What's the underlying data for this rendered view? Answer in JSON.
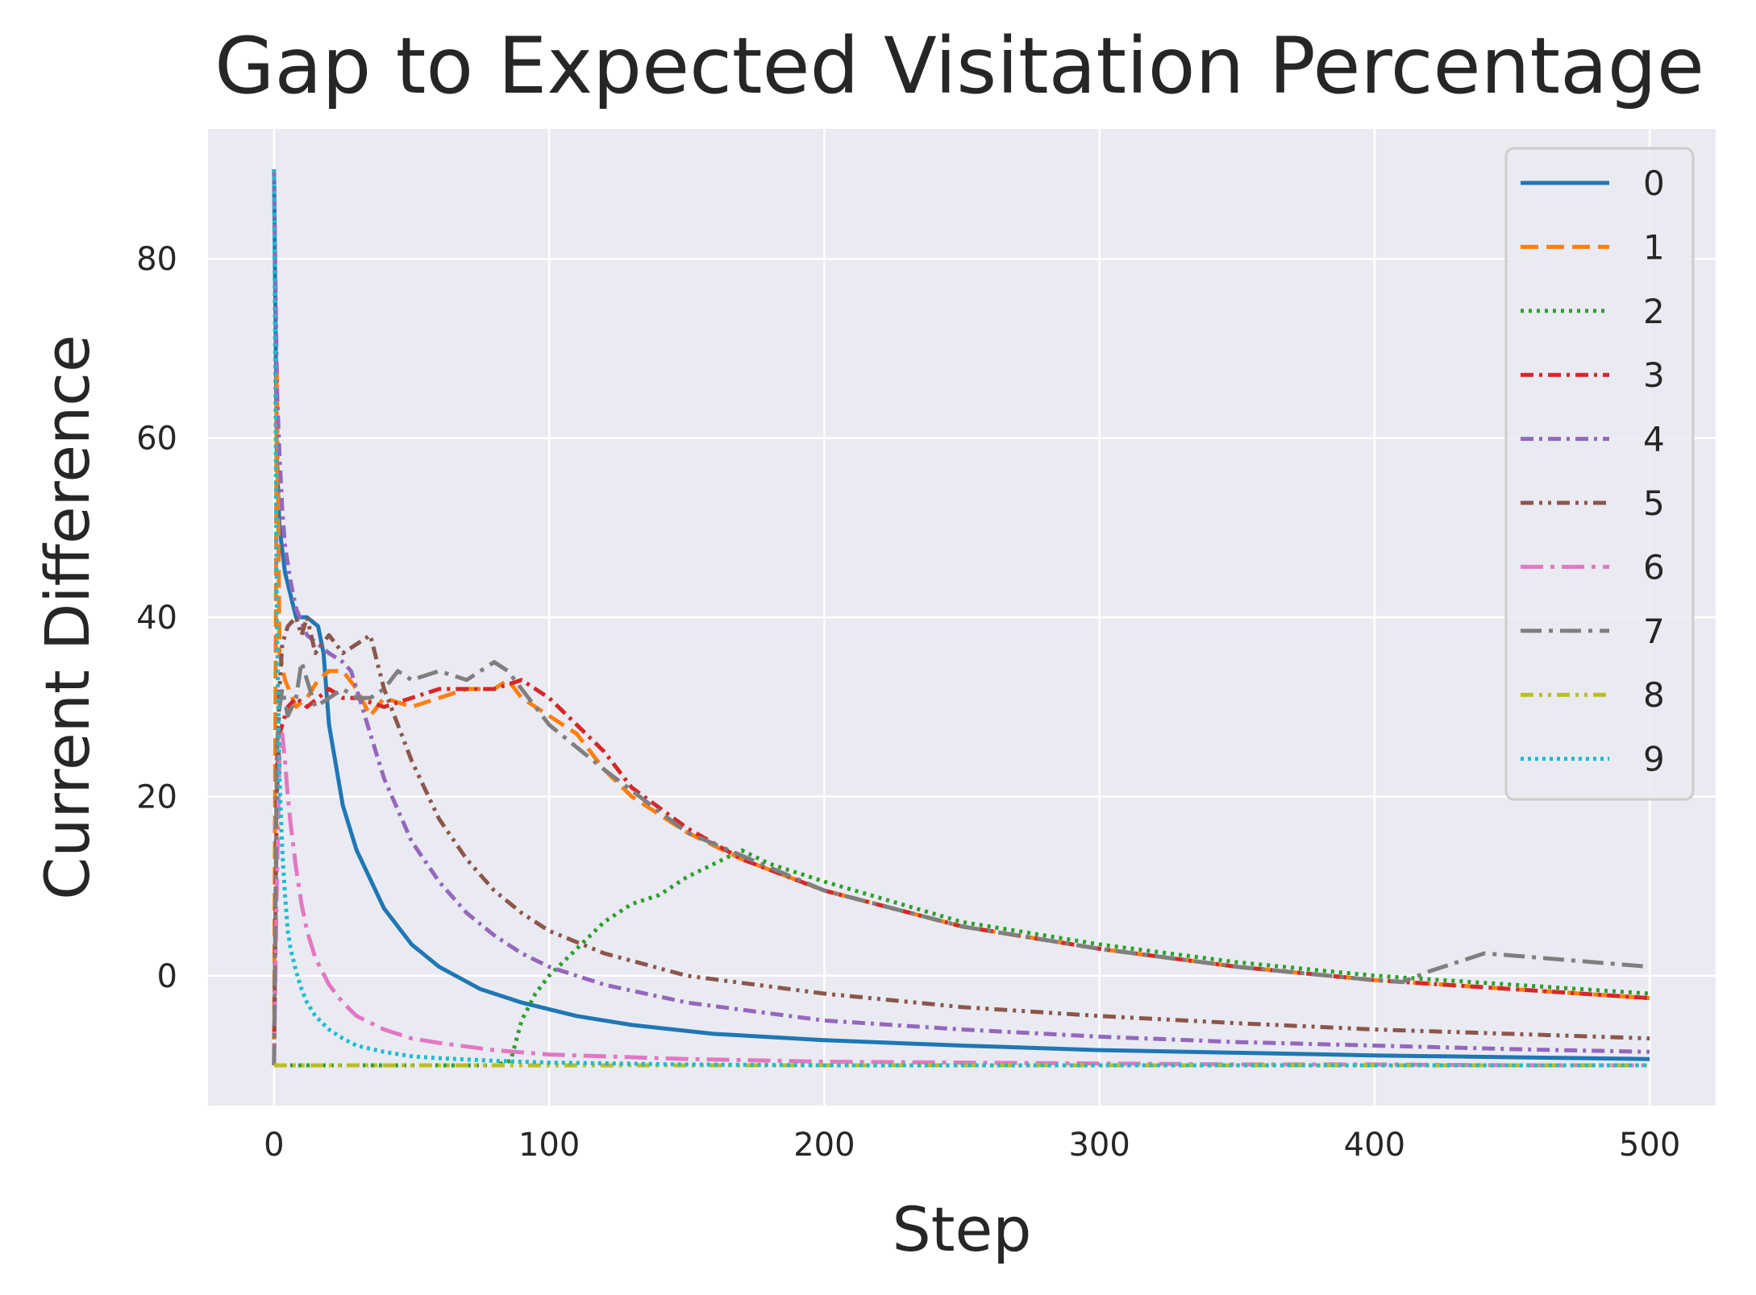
{
  "chart_data": {
    "type": "line",
    "title": "Gap to Expected Visitation Percentage",
    "xlabel": "Step",
    "ylabel": "Current Difference",
    "xlim": [
      -24,
      524
    ],
    "ylim": [
      -14.5,
      94.5
    ],
    "xticks": [
      0,
      100,
      200,
      300,
      400,
      500
    ],
    "yticks": [
      0,
      20,
      40,
      60,
      80
    ],
    "grid": true,
    "legend_position": "top-right",
    "colors": {
      "plot_background": "#eaeaf2",
      "grid": "#ffffff",
      "text": "#262626"
    },
    "series": [
      {
        "name": "0",
        "color": "#1f77b4",
        "dash": "solid",
        "x": [
          0,
          1,
          2,
          4,
          8,
          12,
          16,
          18,
          20,
          25,
          30,
          40,
          50,
          60,
          75,
          90,
          110,
          130,
          160,
          200,
          250,
          300,
          350,
          400,
          450,
          500
        ],
        "y": [
          90,
          58,
          50,
          45,
          40,
          40,
          39,
          36,
          28,
          19,
          14,
          7.5,
          3.5,
          1,
          -1.5,
          -3,
          -4.5,
          -5.5,
          -6.5,
          -7.2,
          -7.8,
          -8.3,
          -8.6,
          -8.9,
          -9.1,
          -9.3
        ]
      },
      {
        "name": "1",
        "color": "#ff7f0e",
        "dash": "dashed",
        "x": [
          0,
          1,
          2,
          4,
          8,
          12,
          16,
          20,
          25,
          30,
          35,
          40,
          50,
          60,
          70,
          80,
          85,
          90,
          100,
          110,
          120,
          130,
          150,
          170,
          200,
          250,
          300,
          350,
          400,
          450,
          500
        ],
        "y": [
          -10,
          68,
          36,
          33,
          30,
          31,
          33,
          34,
          34,
          32,
          29,
          31,
          30,
          31,
          32,
          32,
          33,
          31,
          29,
          27,
          23,
          20,
          16,
          13,
          9.5,
          5.5,
          3,
          1,
          -0.5,
          -1.5,
          -2.5
        ]
      },
      {
        "name": "2",
        "color": "#2ca02c",
        "dash": "dotted",
        "x": [
          0,
          5,
          10,
          20,
          30,
          40,
          50,
          60,
          70,
          80,
          86,
          90,
          95,
          100,
          110,
          120,
          130,
          140,
          150,
          160,
          170,
          180,
          200,
          250,
          300,
          350,
          400,
          450,
          500
        ],
        "y": [
          -10,
          -10,
          -10,
          -10,
          -10,
          -10,
          -10,
          -10,
          -10,
          -10,
          -9.5,
          -5,
          -2,
          0,
          3,
          6,
          8,
          9,
          11,
          12.5,
          14,
          12.5,
          10.5,
          6,
          3.5,
          1.5,
          0,
          -1,
          -2
        ]
      },
      {
        "name": "3",
        "color": "#d62728",
        "dash": "dashdot",
        "x": [
          0,
          1,
          2,
          3,
          5,
          8,
          12,
          16,
          20,
          25,
          30,
          40,
          50,
          60,
          70,
          80,
          90,
          100,
          110,
          120,
          130,
          150,
          170,
          200,
          250,
          300,
          350,
          400,
          450,
          500
        ],
        "y": [
          -10,
          20,
          27,
          28,
          30,
          31,
          30,
          31,
          32,
          31,
          31,
          30,
          31,
          32,
          32,
          32,
          33,
          31,
          28,
          25,
          21,
          16.5,
          13,
          9.5,
          5.5,
          3,
          1,
          -0.5,
          -1.5,
          -2.5
        ]
      },
      {
        "name": "4",
        "color": "#9467bd",
        "dash": "dashdot",
        "x": [
          0,
          1,
          2,
          3,
          4,
          6,
          8,
          12,
          16,
          20,
          25,
          28,
          30,
          35,
          40,
          50,
          60,
          70,
          80,
          90,
          100,
          120,
          150,
          200,
          250,
          300,
          350,
          400,
          450,
          500
        ],
        "y": [
          90,
          66,
          58,
          52,
          48,
          44,
          41,
          38,
          37,
          36,
          35,
          34,
          32,
          27,
          22,
          15,
          10.5,
          7,
          4.5,
          2.5,
          1,
          -1,
          -3,
          -5,
          -6,
          -6.8,
          -7.4,
          -7.8,
          -8.2,
          -8.5
        ]
      },
      {
        "name": "5",
        "color": "#8c564b",
        "dash": "dashdotdot",
        "x": [
          0,
          1,
          2,
          3,
          5,
          8,
          10,
          12,
          15,
          20,
          25,
          30,
          35,
          40,
          45,
          50,
          60,
          70,
          80,
          90,
          100,
          120,
          150,
          200,
          250,
          300,
          350,
          400,
          450,
          500
        ],
        "y": [
          -10,
          22,
          32,
          37,
          39,
          40,
          38,
          40,
          36,
          38,
          36,
          37,
          38,
          32,
          28,
          24,
          17.5,
          13,
          9.5,
          7,
          5,
          2.5,
          0,
          -2,
          -3.5,
          -4.5,
          -5.3,
          -6,
          -6.5,
          -7
        ]
      },
      {
        "name": "6",
        "color": "#e377c2",
        "dash": "dashed-long",
        "x": [
          0,
          1,
          2,
          3,
          4,
          5,
          6,
          8,
          10,
          12,
          15,
          20,
          25,
          30,
          40,
          50,
          60,
          80,
          100,
          150,
          200,
          250,
          300,
          350,
          400,
          450,
          500
        ],
        "y": [
          -10,
          10,
          25,
          27,
          24,
          20,
          17,
          12,
          8,
          5,
          2,
          -1,
          -3,
          -4.5,
          -6,
          -7,
          -7.5,
          -8.3,
          -8.8,
          -9.3,
          -9.6,
          -9.7,
          -9.8,
          -9.9,
          -9.9,
          -10,
          -10
        ]
      },
      {
        "name": "7",
        "color": "#7f7f7f",
        "dash": "dashdotlong",
        "x": [
          0,
          1,
          2,
          3,
          5,
          8,
          10,
          12,
          15,
          20,
          25,
          30,
          35,
          40,
          45,
          50,
          60,
          70,
          80,
          85,
          90,
          100,
          120,
          150,
          200,
          250,
          300,
          350,
          400,
          410,
          420,
          430,
          440,
          460,
          480,
          500
        ],
        "y": [
          -10,
          25,
          30,
          32,
          29,
          31,
          35,
          33,
          30,
          31,
          32,
          31,
          31,
          32,
          34,
          33,
          34,
          33,
          35,
          34,
          32,
          28,
          23,
          16,
          9.5,
          5.5,
          3,
          1,
          -0.5,
          -0.7,
          0.5,
          1.5,
          2.5,
          2,
          1.5,
          1
        ]
      },
      {
        "name": "8",
        "color": "#bcbd22",
        "dash": "dashdotdot",
        "x": [
          0,
          100,
          200,
          300,
          400,
          500
        ],
        "y": [
          -10,
          -10,
          -10,
          -10,
          -10,
          -10
        ]
      },
      {
        "name": "9",
        "color": "#17becf",
        "dash": "dotted-dense",
        "x": [
          0,
          1,
          2,
          3,
          4,
          5,
          6,
          8,
          10,
          12,
          15,
          20,
          25,
          30,
          40,
          50,
          60,
          80,
          100,
          150,
          200,
          250,
          300,
          350,
          400,
          450,
          500
        ],
        "y": [
          90,
          40,
          22,
          14,
          9,
          5,
          3,
          0.5,
          -1.5,
          -3,
          -4.5,
          -6,
          -7,
          -7.8,
          -8.5,
          -9,
          -9.2,
          -9.5,
          -9.7,
          -9.9,
          -10,
          -10,
          -10,
          -10,
          -10,
          -10,
          -10
        ]
      }
    ]
  }
}
